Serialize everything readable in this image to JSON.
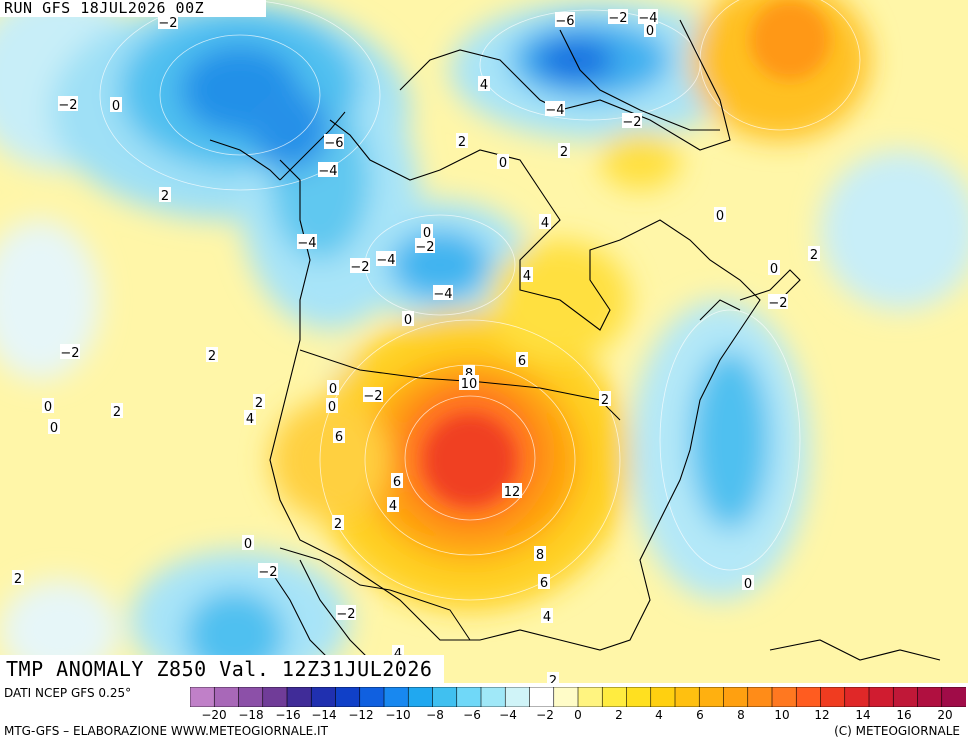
{
  "header": {
    "run_label": "RUN GFS 18JUL2026 00Z",
    "title": "TMP ANOMALY Z850 Val. 12Z31JUL2026"
  },
  "footer": {
    "dati": "DATI NCEP GFS 0.25°",
    "credit_left": "MTG-GFS – ELABORAZIONE WWW.METEOGIORNALE.IT",
    "credit_right": "(C) METEOGIORNALE"
  },
  "colorbar": {
    "tick_labels": [
      "−20",
      "−18",
      "−16",
      "−14",
      "−12",
      "−10",
      "−8",
      "−6",
      "−4",
      "−2",
      "0",
      "2",
      "4",
      "6",
      "8",
      "10",
      "12",
      "14",
      "16",
      "20"
    ],
    "colors": [
      "#c080c8",
      "#a868b8",
      "#8c50a8",
      "#703c98",
      "#402c98",
      "#2030b0",
      "#1040c8",
      "#1060e0",
      "#1888f0",
      "#20a8f0",
      "#40c0f0",
      "#70d8f8",
      "#a0e8f8",
      "#d0f4f8",
      "#ffffff",
      "#fffcc8",
      "#fff480",
      "#ffec40",
      "#ffe020",
      "#ffd010",
      "#ffc010",
      "#ffb010",
      "#ffa010",
      "#ff8c18",
      "#ff7820",
      "#ff5c20",
      "#f03c20",
      "#e02828",
      "#d01c30",
      "#c01838",
      "#b01040",
      "#a00c48"
    ]
  },
  "map_labels": [
    {
      "t": "−2"
    },
    {
      "t": "−6"
    },
    {
      "t": "−2"
    },
    {
      "t": "−4"
    },
    {
      "t": "0"
    },
    {
      "t": "−2"
    },
    {
      "t": "0"
    },
    {
      "t": "4"
    },
    {
      "t": "−4"
    },
    {
      "t": "−2"
    },
    {
      "t": "−6"
    },
    {
      "t": "2"
    },
    {
      "t": "2"
    },
    {
      "t": "0"
    },
    {
      "t": "−4"
    },
    {
      "t": "2"
    },
    {
      "t": "0"
    },
    {
      "t": "4"
    },
    {
      "t": "−4"
    },
    {
      "t": "0"
    },
    {
      "t": "−2"
    },
    {
      "t": "2"
    },
    {
      "t": "−2"
    },
    {
      "t": "−4"
    },
    {
      "t": "4"
    },
    {
      "t": "0"
    },
    {
      "t": "−4"
    },
    {
      "t": "−2"
    },
    {
      "t": "0"
    },
    {
      "t": "−2"
    },
    {
      "t": "2"
    },
    {
      "t": "6"
    },
    {
      "t": "8"
    },
    {
      "t": "10"
    },
    {
      "t": "0"
    },
    {
      "t": "−2"
    },
    {
      "t": "2"
    },
    {
      "t": "0"
    },
    {
      "t": "2"
    },
    {
      "t": "0"
    },
    {
      "t": "2"
    },
    {
      "t": "4"
    },
    {
      "t": "0"
    },
    {
      "t": "6"
    },
    {
      "t": "6"
    },
    {
      "t": "4"
    },
    {
      "t": "12"
    },
    {
      "t": "2"
    },
    {
      "t": "0"
    },
    {
      "t": "8"
    },
    {
      "t": "−2"
    },
    {
      "t": "6"
    },
    {
      "t": "2"
    },
    {
      "t": "0"
    },
    {
      "t": "−2"
    },
    {
      "t": "4"
    },
    {
      "t": "4"
    },
    {
      "t": "2"
    }
  ]
}
